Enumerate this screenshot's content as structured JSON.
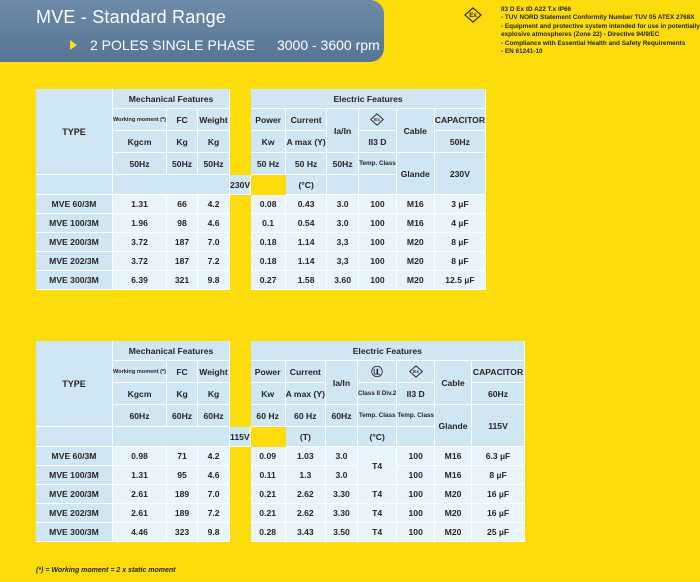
{
  "banner": {
    "title": "MVE  -  Standard Range",
    "subtitle_poles": "2 POLES SINGLE PHASE",
    "subtitle_rpm": "3000 - 3600 rpm"
  },
  "certifications": [
    "II3 D Ex tD A22 T.x IP66",
    "- TUV NORD Statement Conformity Number TUV 05 ATEX 2768X",
    "- Equipment and protective system intended for use in potentially explosive atmospheres (Zone 22) - Directive 94/9/EC",
    "- Compliance with Essential Health and Safety Requirements",
    "- EN 61241-10"
  ],
  "table50": {
    "type_label": "TYPE",
    "mech_title": "Mechanical Features",
    "elec_title": "Electric Features",
    "col_working_moment": "Working moment (*)",
    "col_kgcm": "Kgcm",
    "col_freq1": "50Hz",
    "col_fc": "FC",
    "col_kg": "Kg",
    "col_freq2": "50Hz",
    "col_weight": "Weight",
    "col_kg2": "Kg",
    "col_freq3": "50Hz",
    "col_power": "Power",
    "col_kw": "Kw",
    "col_freq4": "50 Hz",
    "col_current": "Current",
    "col_amax": "A max (Y)",
    "col_freq5": "50 Hz",
    "col_volt": "230V",
    "col_iain": "Ia/In",
    "col_freq6": "50Hz",
    "col_ii3d": "II3 D",
    "col_tempclass": "Temp. Class",
    "col_degc": "(°C)",
    "col_cable": "Cable",
    "col_glande": "Glande",
    "col_capacitor": "CAPACITOR",
    "col_cap_freq": "50Hz",
    "col_cap_volt": "230V",
    "rows": [
      {
        "type": "MVE 60/3M",
        "wm": "1.31",
        "fc": "66",
        "weight": "4.2",
        "power": "0.08",
        "current": "0.43",
        "iain": "3.0",
        "temp": "100",
        "cable": "M16",
        "cap": "3 µF"
      },
      {
        "type": "MVE 100/3M",
        "wm": "1.96",
        "fc": "98",
        "weight": "4.6",
        "power": "0.1",
        "current": "0.54",
        "iain": "3.0",
        "temp": "100",
        "cable": "M16",
        "cap": "4 µF"
      },
      {
        "type": "MVE 200/3M",
        "wm": "3.72",
        "fc": "187",
        "weight": "7.0",
        "power": "0.18",
        "current": "1.14",
        "iain": "3,3",
        "temp": "100",
        "cable": "M20",
        "cap": "8 µF"
      },
      {
        "type": "MVE 202/3M",
        "wm": "3.72",
        "fc": "187",
        "weight": "7.2",
        "power": "0.18",
        "current": "1.14",
        "iain": "3,3",
        "temp": "100",
        "cable": "M20",
        "cap": "8 µF"
      },
      {
        "type": "MVE 300/3M",
        "wm": "6.39",
        "fc": "321",
        "weight": "9.8",
        "power": "0.27",
        "current": "1.58",
        "iain": "3.60",
        "temp": "100",
        "cable": "M20",
        "cap": "12.5 µF"
      }
    ]
  },
  "table60": {
    "type_label": "TYPE",
    "mech_title": "Mechanical Features",
    "elec_title": "Electric Features",
    "col_working_moment": "Working moment (*)",
    "col_kgcm": "Kgcm",
    "col_freq1": "60Hz",
    "col_fc": "FC",
    "col_kg": "Kg",
    "col_freq2": "60Hz",
    "col_weight": "Weight",
    "col_kg2": "Kg",
    "col_freq3": "60Hz",
    "col_power": "Power",
    "col_kw": "Kw",
    "col_freq4": "60 Hz",
    "col_current": "Current",
    "col_amax": "A max (Y)",
    "col_freq5": "60 Hz",
    "col_volt": "115V",
    "col_iain": "Ia/In",
    "col_freq6": "60Hz",
    "col_classdiv": "Class II Div.2",
    "col_tempclass1": "Temp. Class",
    "col_t": "(T)",
    "col_ii3d": "II3 D",
    "col_tempclass2": "Temp. Class",
    "col_degc": "(°C)",
    "col_cable": "Cable",
    "col_glande": "Glande",
    "col_capacitor": "CAPACITOR",
    "col_cap_freq": "60Hz",
    "col_cap_volt": "115V",
    "t4_group": "T4",
    "rows": [
      {
        "type": "MVE 60/3M",
        "wm": "0.98",
        "fc": "71",
        "weight": "4.2",
        "power": "0.09",
        "current": "1.03",
        "iain": "3.0",
        "temp": "100",
        "cable": "M16",
        "cap": "6.3 µF"
      },
      {
        "type": "MVE 100/3M",
        "wm": "1.31",
        "fc": "95",
        "weight": "4.6",
        "power": "0.11",
        "current": "1.3",
        "iain": "3.0",
        "temp": "100",
        "cable": "M16",
        "cap": "8 µF"
      },
      {
        "type": "MVE 200/3M",
        "wm": "2.61",
        "fc": "189",
        "weight": "7.0",
        "power": "0.21",
        "current": "2.62",
        "iain": "3.30",
        "tclass": "T4",
        "temp": "100",
        "cable": "M20",
        "cap": "16 µF"
      },
      {
        "type": "MVE 202/3M",
        "wm": "2.61",
        "fc": "189",
        "weight": "7.2",
        "power": "0.21",
        "current": "2.62",
        "iain": "3.30",
        "tclass": "T4",
        "temp": "100",
        "cable": "M20",
        "cap": "16 µF"
      },
      {
        "type": "MVE 300/3M",
        "wm": "4.46",
        "fc": "323",
        "weight": "9.8",
        "power": "0.28",
        "current": "3.43",
        "iain": "3.50",
        "tclass": "T4",
        "temp": "100",
        "cable": "M20",
        "cap": "25 µF"
      }
    ]
  },
  "footnote": "(*) = Working moment = 2 x static moment",
  "icons": {
    "ex_mark": "ex-atex-icon",
    "ul_mark": "ul-class-icon"
  }
}
